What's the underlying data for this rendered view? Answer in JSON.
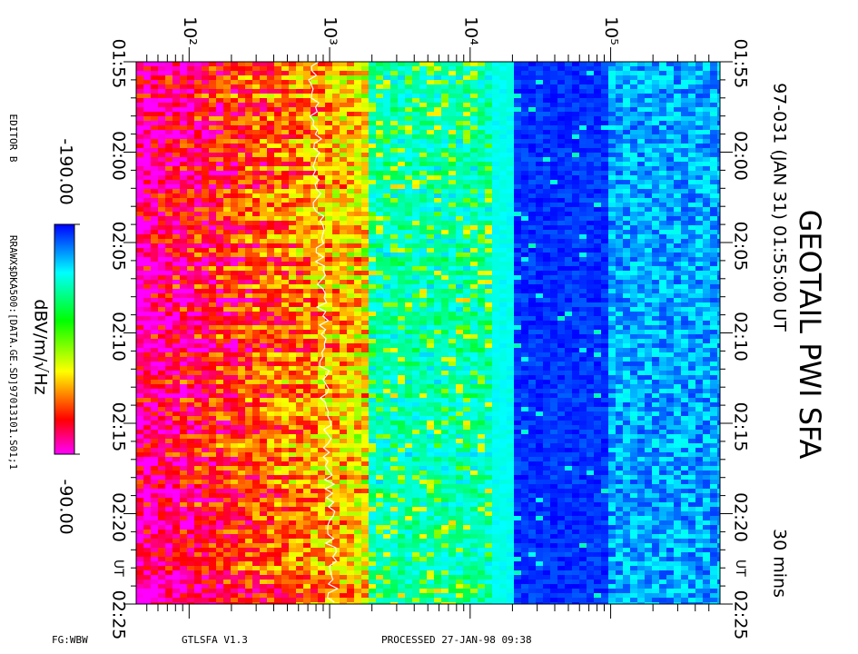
{
  "chart_data": {
    "type": "spectrogram",
    "title": "GEOTAIL PWI SFA",
    "subtitle": "97-031 (JAN 31) 01:55:00 UT",
    "duration_label": "30 mins",
    "xscale": "log",
    "xlim": [
      42,
      600000
    ],
    "xticks": [
      {
        "value": 100,
        "label": "10²"
      },
      {
        "value": 1000,
        "label": "10³"
      },
      {
        "value": 10000,
        "label": "10⁴"
      },
      {
        "value": 100000,
        "label": "10⁵"
      }
    ],
    "time_ticks": [
      "01:55",
      "02:00",
      "02:05",
      "02:10",
      "02:15",
      "02:20",
      "02:25"
    ],
    "time_unit_label": "UT",
    "colorbar": {
      "label": "dBV/m/√Hz",
      "clim": [
        -190,
        -90
      ],
      "ticks": [
        {
          "value": -190,
          "label": "-190.00"
        },
        {
          "value": -90,
          "label": "-90.00"
        }
      ]
    },
    "editor": "EDITOR B",
    "file_path": "RRAWX$DKA500:[DATA.GE.SD]97013101.S01;1",
    "footer": {
      "mode": "FG:WBW",
      "program": "GTLSFA   V1.3",
      "processed": "PROCESSED 27-JAN-98   09:38"
    }
  }
}
